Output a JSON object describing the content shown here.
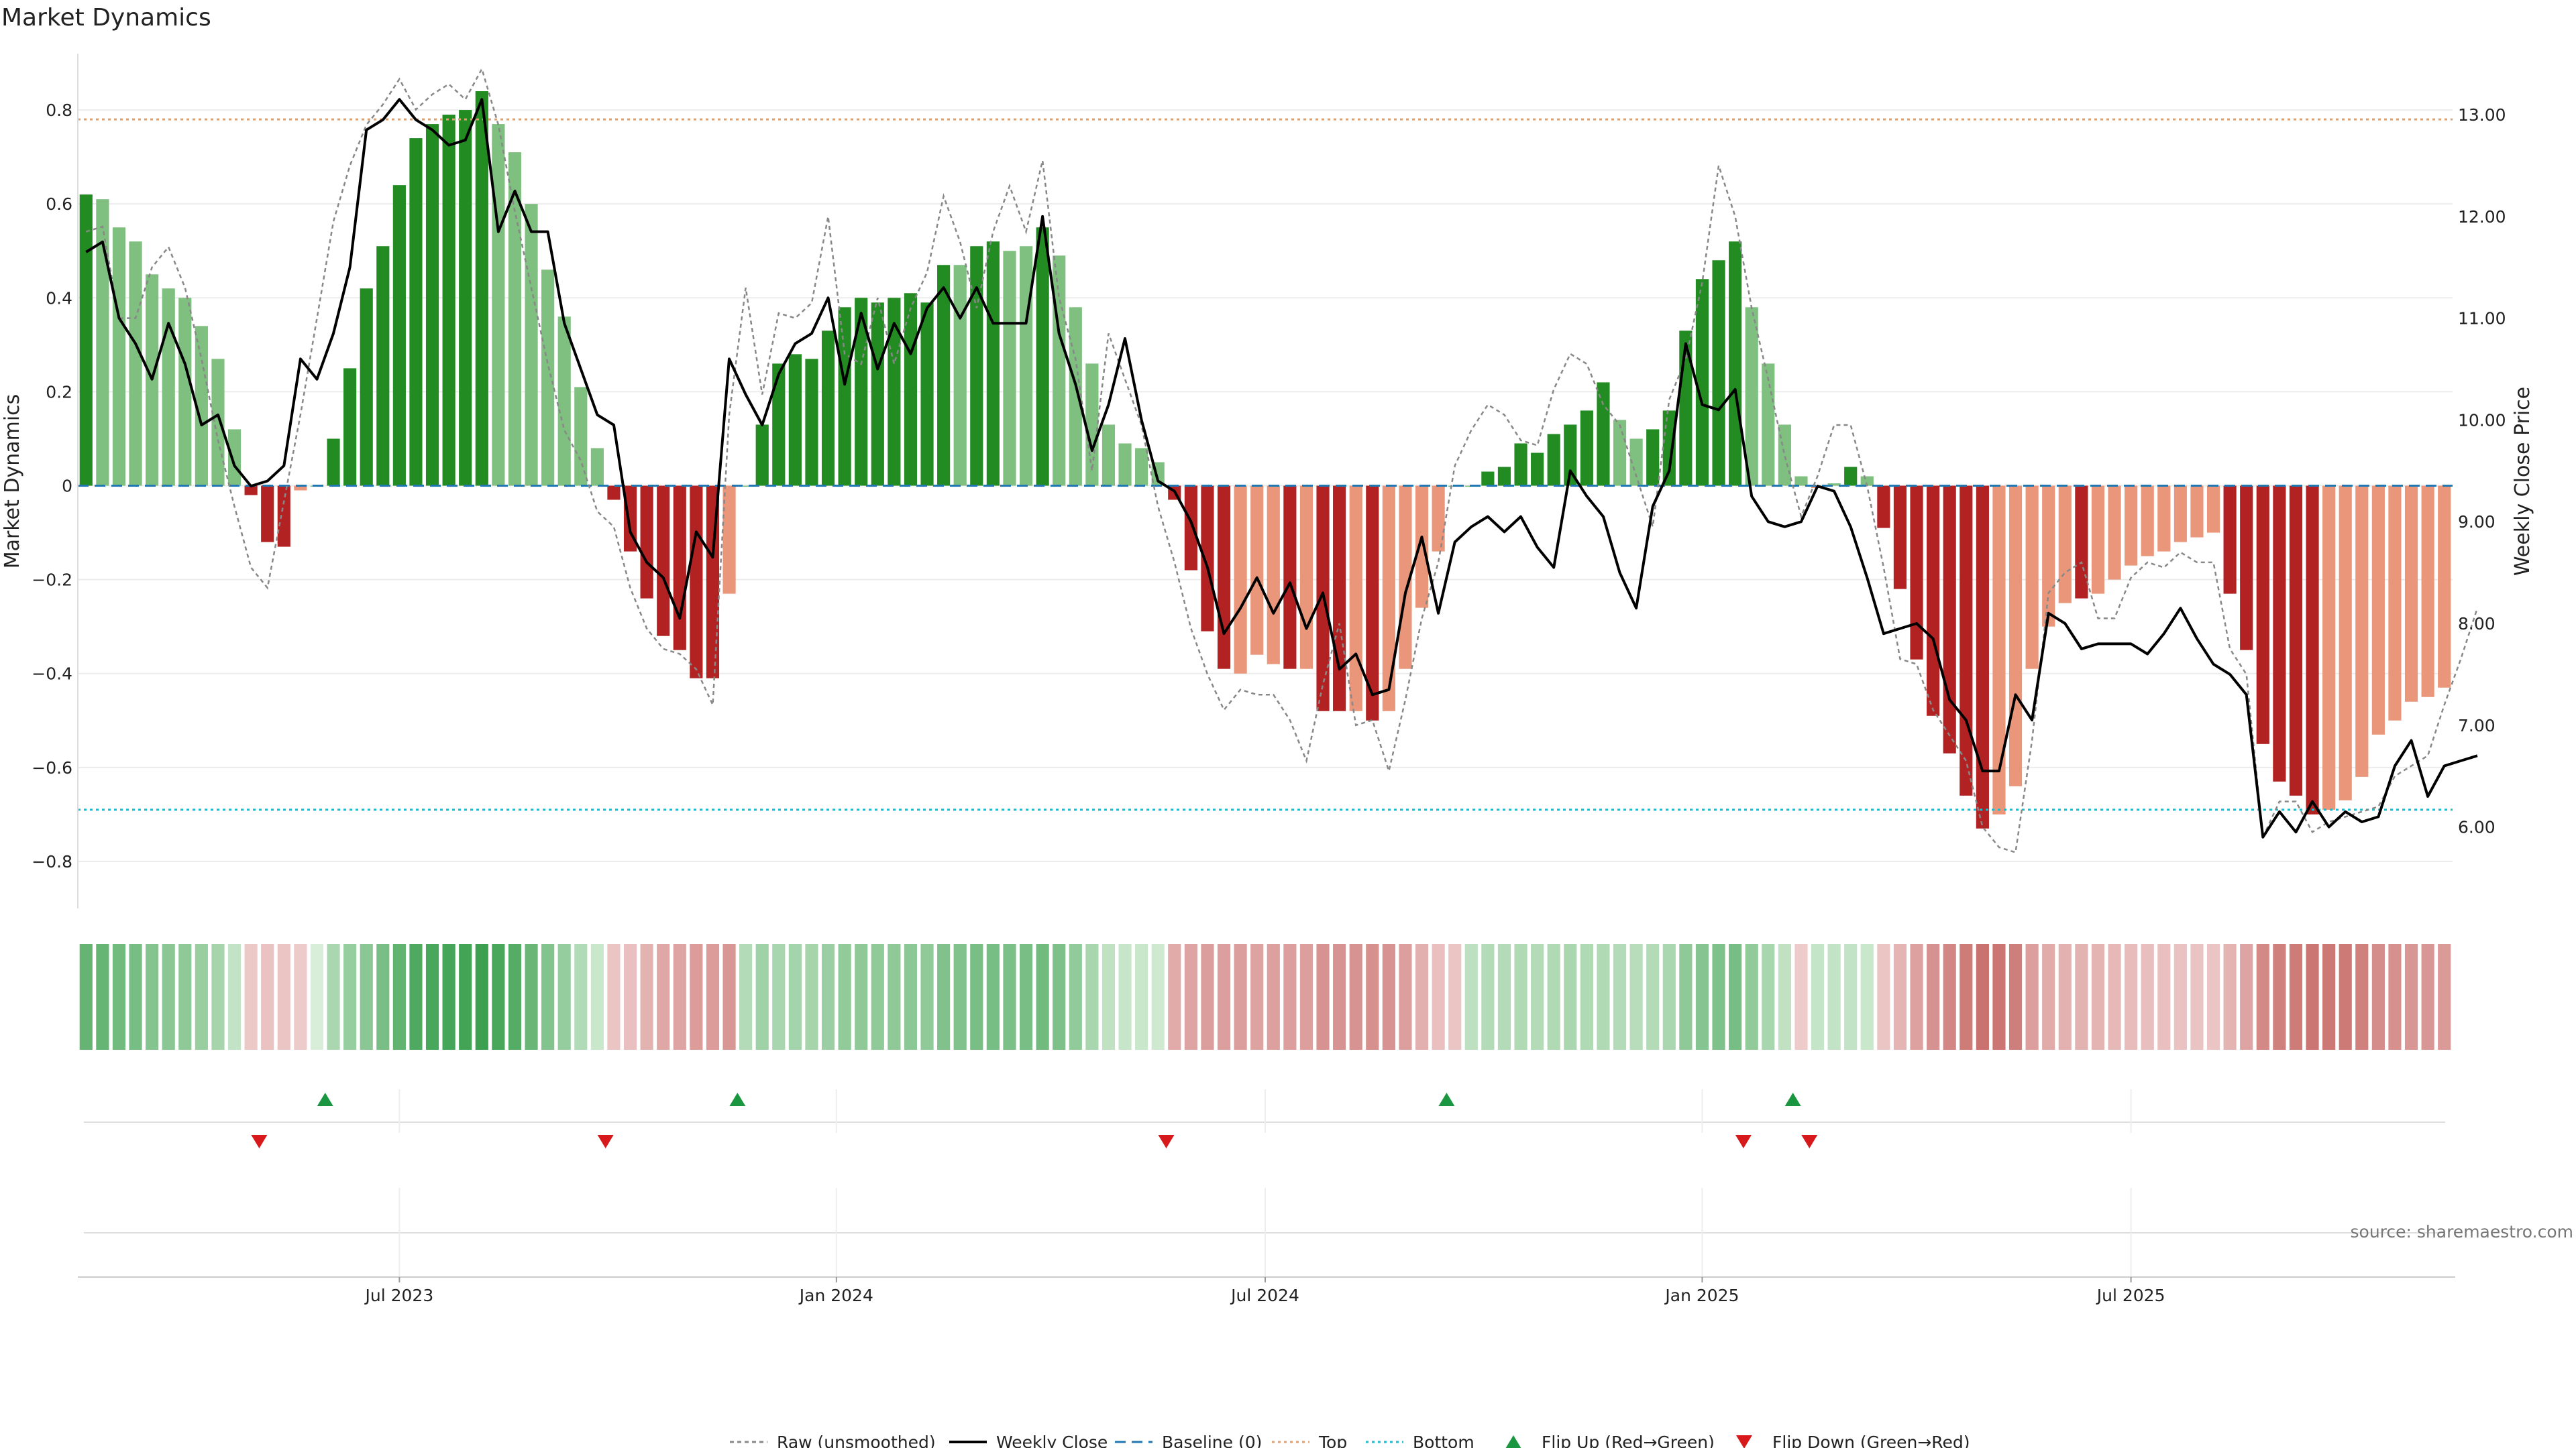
{
  "chart_data": {
    "type": "bar",
    "title": "Market Dynamics",
    "ylabel_left": "Market Dynamics",
    "ylabel_right": "Weekly Close Price",
    "source": "source: sharemaestro.com",
    "ylim_left": [
      -0.9,
      0.92
    ],
    "ylim_right": [
      5.2,
      13.6
    ],
    "left_ticks": [
      {
        "value": 0.8,
        "label": "0.8"
      },
      {
        "value": 0.6,
        "label": "0.6"
      },
      {
        "value": 0.4,
        "label": "0.4"
      },
      {
        "value": 0.2,
        "label": "0.2"
      },
      {
        "value": 0,
        "label": "0"
      },
      {
        "value": -0.2,
        "label": "−0.2"
      },
      {
        "value": -0.4,
        "label": "−0.4"
      },
      {
        "value": -0.6,
        "label": "−0.6"
      },
      {
        "value": -0.8,
        "label": "−0.8"
      }
    ],
    "right_ticks": [
      {
        "value": 13,
        "label": "13.00"
      },
      {
        "value": 12,
        "label": "12.00"
      },
      {
        "value": 11,
        "label": "11.00"
      },
      {
        "value": 10,
        "label": "10.00"
      },
      {
        "value": 9,
        "label": "9.00"
      },
      {
        "value": 8,
        "label": "8.00"
      },
      {
        "value": 7,
        "label": "7.00"
      },
      {
        "value": 6,
        "label": "6.00"
      }
    ],
    "x_ticks": [
      {
        "index": 19,
        "label": "Jul 2023"
      },
      {
        "index": 45.5,
        "label": "Jan 2024"
      },
      {
        "index": 71.5,
        "label": "Jul 2024"
      },
      {
        "index": 98,
        "label": "Jan 2025"
      },
      {
        "index": 124,
        "label": "Jul 2025"
      }
    ],
    "top_level": 0.78,
    "bottom_level": -0.69,
    "baseline": 0,
    "colors": {
      "strong_up": "#228b22",
      "weak_up": "#7fbf7f",
      "strong_down": "#b22222",
      "weak_down": "#e9967a",
      "close": "#000000",
      "raw": "#888888",
      "baseline": "#1f77b4",
      "top": "#e0a070",
      "bottom": "#17becf",
      "flip_up": "#1a9641",
      "flip_down": "#d7191c"
    },
    "bars": [
      {
        "v": 0.62,
        "s": 1
      },
      {
        "v": 0.61,
        "s": 0
      },
      {
        "v": 0.55,
        "s": 0
      },
      {
        "v": 0.52,
        "s": 0
      },
      {
        "v": 0.45,
        "s": 0
      },
      {
        "v": 0.42,
        "s": 0
      },
      {
        "v": 0.4,
        "s": 0
      },
      {
        "v": 0.34,
        "s": 0
      },
      {
        "v": 0.27,
        "s": 0
      },
      {
        "v": 0.12,
        "s": 0
      },
      {
        "v": -0.02,
        "s": 1
      },
      {
        "v": -0.12,
        "s": 1
      },
      {
        "v": -0.13,
        "s": 1
      },
      {
        "v": -0.01,
        "s": 0
      },
      {
        "v": 0.0,
        "s": 0
      },
      {
        "v": 0.1,
        "s": 1
      },
      {
        "v": 0.25,
        "s": 1
      },
      {
        "v": 0.42,
        "s": 1
      },
      {
        "v": 0.51,
        "s": 1
      },
      {
        "v": 0.64,
        "s": 1
      },
      {
        "v": 0.74,
        "s": 1
      },
      {
        "v": 0.77,
        "s": 1
      },
      {
        "v": 0.79,
        "s": 1
      },
      {
        "v": 0.8,
        "s": 1
      },
      {
        "v": 0.84,
        "s": 1
      },
      {
        "v": 0.77,
        "s": 0
      },
      {
        "v": 0.71,
        "s": 0
      },
      {
        "v": 0.6,
        "s": 0
      },
      {
        "v": 0.46,
        "s": 0
      },
      {
        "v": 0.36,
        "s": 0
      },
      {
        "v": 0.21,
        "s": 0
      },
      {
        "v": 0.08,
        "s": 0
      },
      {
        "v": -0.03,
        "s": 1
      },
      {
        "v": -0.14,
        "s": 1
      },
      {
        "v": -0.24,
        "s": 1
      },
      {
        "v": -0.32,
        "s": 1
      },
      {
        "v": -0.35,
        "s": 1
      },
      {
        "v": -0.41,
        "s": 1
      },
      {
        "v": -0.41,
        "s": 1
      },
      {
        "v": -0.23,
        "s": 0
      },
      {
        "v": 0.0,
        "s": 0
      },
      {
        "v": 0.13,
        "s": 1
      },
      {
        "v": 0.26,
        "s": 1
      },
      {
        "v": 0.28,
        "s": 1
      },
      {
        "v": 0.27,
        "s": 1
      },
      {
        "v": 0.33,
        "s": 1
      },
      {
        "v": 0.38,
        "s": 1
      },
      {
        "v": 0.4,
        "s": 1
      },
      {
        "v": 0.39,
        "s": 1
      },
      {
        "v": 0.4,
        "s": 1
      },
      {
        "v": 0.41,
        "s": 1
      },
      {
        "v": 0.39,
        "s": 1
      },
      {
        "v": 0.47,
        "s": 1
      },
      {
        "v": 0.47,
        "s": 0
      },
      {
        "v": 0.51,
        "s": 1
      },
      {
        "v": 0.52,
        "s": 1
      },
      {
        "v": 0.5,
        "s": 0
      },
      {
        "v": 0.51,
        "s": 0
      },
      {
        "v": 0.55,
        "s": 1
      },
      {
        "v": 0.49,
        "s": 0
      },
      {
        "v": 0.38,
        "s": 0
      },
      {
        "v": 0.26,
        "s": 0
      },
      {
        "v": 0.13,
        "s": 0
      },
      {
        "v": 0.09,
        "s": 0
      },
      {
        "v": 0.08,
        "s": 0
      },
      {
        "v": 0.05,
        "s": 0
      },
      {
        "v": -0.03,
        "s": 1
      },
      {
        "v": -0.18,
        "s": 1
      },
      {
        "v": -0.31,
        "s": 1
      },
      {
        "v": -0.39,
        "s": 1
      },
      {
        "v": -0.4,
        "s": 0
      },
      {
        "v": -0.36,
        "s": 0
      },
      {
        "v": -0.38,
        "s": 0
      },
      {
        "v": -0.39,
        "s": 1
      },
      {
        "v": -0.39,
        "s": 0
      },
      {
        "v": -0.48,
        "s": 1
      },
      {
        "v": -0.48,
        "s": 1
      },
      {
        "v": -0.48,
        "s": 0
      },
      {
        "v": -0.5,
        "s": 1
      },
      {
        "v": -0.48,
        "s": 0
      },
      {
        "v": -0.39,
        "s": 0
      },
      {
        "v": -0.26,
        "s": 0
      },
      {
        "v": -0.14,
        "s": 0
      },
      {
        "v": 0.0,
        "s": 0
      },
      {
        "v": 0.0,
        "s": 0
      },
      {
        "v": 0.03,
        "s": 1
      },
      {
        "v": 0.04,
        "s": 1
      },
      {
        "v": 0.09,
        "s": 1
      },
      {
        "v": 0.07,
        "s": 1
      },
      {
        "v": 0.11,
        "s": 1
      },
      {
        "v": 0.13,
        "s": 1
      },
      {
        "v": 0.16,
        "s": 1
      },
      {
        "v": 0.22,
        "s": 1
      },
      {
        "v": 0.14,
        "s": 0
      },
      {
        "v": 0.1,
        "s": 0
      },
      {
        "v": 0.12,
        "s": 1
      },
      {
        "v": 0.16,
        "s": 1
      },
      {
        "v": 0.33,
        "s": 1
      },
      {
        "v": 0.44,
        "s": 1
      },
      {
        "v": 0.48,
        "s": 1
      },
      {
        "v": 0.52,
        "s": 1
      },
      {
        "v": 0.38,
        "s": 0
      },
      {
        "v": 0.26,
        "s": 0
      },
      {
        "v": 0.13,
        "s": 0
      },
      {
        "v": 0.02,
        "s": 0
      },
      {
        "v": -0.005,
        "s": 0
      },
      {
        "v": 0.005,
        "s": 0
      },
      {
        "v": 0.04,
        "s": 1
      },
      {
        "v": 0.02,
        "s": 0
      },
      {
        "v": -0.09,
        "s": 1
      },
      {
        "v": -0.22,
        "s": 1
      },
      {
        "v": -0.37,
        "s": 1
      },
      {
        "v": -0.49,
        "s": 1
      },
      {
        "v": -0.57,
        "s": 1
      },
      {
        "v": -0.66,
        "s": 1
      },
      {
        "v": -0.73,
        "s": 1
      },
      {
        "v": -0.7,
        "s": 0
      },
      {
        "v": -0.64,
        "s": 0
      },
      {
        "v": -0.39,
        "s": 0
      },
      {
        "v": -0.3,
        "s": 0
      },
      {
        "v": -0.25,
        "s": 0
      },
      {
        "v": -0.24,
        "s": 1
      },
      {
        "v": -0.23,
        "s": 0
      },
      {
        "v": -0.2,
        "s": 0
      },
      {
        "v": -0.17,
        "s": 0
      },
      {
        "v": -0.15,
        "s": 0
      },
      {
        "v": -0.14,
        "s": 0
      },
      {
        "v": -0.12,
        "s": 0
      },
      {
        "v": -0.11,
        "s": 0
      },
      {
        "v": -0.1,
        "s": 0
      },
      {
        "v": -0.23,
        "s": 1
      },
      {
        "v": -0.35,
        "s": 1
      },
      {
        "v": -0.55,
        "s": 1
      },
      {
        "v": -0.63,
        "s": 1
      },
      {
        "v": -0.66,
        "s": 1
      },
      {
        "v": -0.7,
        "s": 1
      },
      {
        "v": -0.69,
        "s": 0
      },
      {
        "v": -0.67,
        "s": 0
      },
      {
        "v": -0.62,
        "s": 0
      },
      {
        "v": -0.53,
        "s": 0
      },
      {
        "v": -0.5,
        "s": 0
      },
      {
        "v": -0.46,
        "s": 0
      },
      {
        "v": -0.45,
        "s": 0
      },
      {
        "v": -0.43,
        "s": 0
      }
    ],
    "close": [
      11.65,
      11.75,
      11.0,
      10.75,
      10.4,
      10.95,
      10.55,
      9.95,
      10.05,
      9.55,
      9.35,
      9.4,
      9.55,
      10.6,
      10.4,
      10.85,
      11.5,
      12.85,
      12.95,
      13.15,
      12.95,
      12.85,
      12.7,
      12.75,
      13.15,
      11.85,
      12.25,
      11.85,
      11.85,
      10.95,
      10.5,
      10.05,
      9.95,
      8.9,
      8.6,
      8.45,
      8.05,
      8.9,
      8.65,
      10.6,
      10.25,
      9.95,
      10.45,
      10.75,
      10.85,
      11.2,
      10.35,
      11.05,
      10.5,
      10.95,
      10.65,
      11.1,
      11.3,
      11.0,
      11.3,
      10.95,
      10.95,
      10.95,
      12.0,
      10.85,
      10.35,
      9.7,
      10.15,
      10.8,
      10.0,
      9.4,
      9.3,
      9.0,
      8.55,
      7.9,
      8.15,
      8.45,
      8.1,
      8.4,
      7.95,
      8.3,
      7.55,
      7.7,
      7.3,
      7.35,
      8.3,
      8.85,
      8.1,
      8.8,
      8.95,
      9.05,
      8.9,
      9.05,
      8.75,
      8.55,
      9.5,
      9.25,
      9.05,
      8.5,
      8.15,
      9.15,
      9.5,
      10.75,
      10.15,
      10.1,
      10.3,
      9.25,
      9.0,
      8.95,
      9.0,
      9.35,
      9.3,
      8.95,
      8.45,
      7.9,
      7.95,
      8.0,
      7.85,
      7.25,
      7.05,
      6.55,
      6.55,
      7.3,
      7.05,
      8.1,
      8.0,
      7.75,
      7.8,
      7.8,
      7.8,
      7.7,
      7.9,
      8.15,
      7.85,
      7.6,
      7.5,
      7.3,
      5.9,
      6.15,
      5.95,
      6.25,
      6.0,
      6.15,
      6.05,
      6.1,
      6.6,
      6.85,
      6.3,
      6.6,
      6.65,
      6.7
    ],
    "raw": [
      11.85,
      11.9,
      11.0,
      11.0,
      11.5,
      11.7,
      11.3,
      10.6,
      9.8,
      9.15,
      8.55,
      8.35,
      9.2,
      10.05,
      11.0,
      11.95,
      12.5,
      12.9,
      13.1,
      13.35,
      13.05,
      13.2,
      13.3,
      13.15,
      13.45,
      12.9,
      12.05,
      11.3,
      10.55,
      9.9,
      9.6,
      9.1,
      8.95,
      8.35,
      7.95,
      7.75,
      7.7,
      7.55,
      7.2,
      10.05,
      11.3,
      10.25,
      11.05,
      11.0,
      11.15,
      12.0,
      10.65,
      10.55,
      11.2,
      10.55,
      11.1,
      11.45,
      12.2,
      11.75,
      11.1,
      11.85,
      12.3,
      11.85,
      12.55,
      11.2,
      10.6,
      9.5,
      10.85,
      10.4,
      9.95,
      9.15,
      8.6,
      7.95,
      7.5,
      7.15,
      7.35,
      7.3,
      7.3,
      7.05,
      6.65,
      7.4,
      8.0,
      7.0,
      7.05,
      6.55,
      7.25,
      8.05,
      8.6,
      9.55,
      9.9,
      10.15,
      10.05,
      9.8,
      9.75,
      10.3,
      10.65,
      10.55,
      10.15,
      9.95,
      9.45,
      8.95,
      10.2,
      10.6,
      11.35,
      12.5,
      12.0,
      11.1,
      10.4,
      9.65,
      9.05,
      9.45,
      9.95,
      9.95,
      9.35,
      8.55,
      7.65,
      7.6,
      7.15,
      6.9,
      6.65,
      6.0,
      5.8,
      5.75,
      6.85,
      8.3,
      8.5,
      8.6,
      8.05,
      8.05,
      8.45,
      8.6,
      8.55,
      8.7,
      8.6,
      8.6,
      7.75,
      7.5,
      5.9,
      6.25,
      6.25,
      5.95,
      6.05,
      6.1,
      6.15,
      6.2,
      6.5,
      6.6,
      6.7,
      7.2,
      7.65,
      8.15
    ],
    "heat_values": [
      0.62,
      0.61,
      0.55,
      0.52,
      0.45,
      0.42,
      0.4,
      0.34,
      0.27,
      0.12,
      -0.08,
      -0.12,
      -0.1,
      -0.05,
      0.0,
      0.25,
      0.35,
      0.42,
      0.51,
      0.64,
      0.74,
      0.77,
      0.79,
      0.8,
      0.84,
      0.77,
      0.71,
      0.6,
      0.46,
      0.36,
      0.21,
      0.08,
      -0.1,
      -0.14,
      -0.24,
      -0.32,
      -0.35,
      -0.41,
      -0.41,
      -0.45,
      0.2,
      0.3,
      0.26,
      0.28,
      0.27,
      0.33,
      0.38,
      0.4,
      0.39,
      0.4,
      0.41,
      0.39,
      0.47,
      0.47,
      0.51,
      0.52,
      0.5,
      0.51,
      0.55,
      0.49,
      0.38,
      0.26,
      0.13,
      0.09,
      0.08,
      0.05,
      -0.3,
      -0.35,
      -0.4,
      -0.39,
      -0.4,
      -0.36,
      -0.38,
      -0.39,
      -0.39,
      -0.48,
      -0.48,
      -0.48,
      -0.5,
      -0.48,
      -0.39,
      -0.26,
      -0.14,
      -0.1,
      0.15,
      0.2,
      0.2,
      0.22,
      0.2,
      0.22,
      0.25,
      0.22,
      0.22,
      0.2,
      0.18,
      0.2,
      0.25,
      0.4,
      0.44,
      0.48,
      0.52,
      0.38,
      0.26,
      0.13,
      -0.05,
      0.1,
      0.12,
      0.12,
      0.08,
      -0.1,
      -0.22,
      -0.37,
      -0.49,
      -0.57,
      -0.66,
      -0.73,
      -0.7,
      -0.64,
      -0.39,
      -0.3,
      -0.25,
      -0.24,
      -0.23,
      -0.2,
      -0.17,
      -0.15,
      -0.14,
      -0.12,
      -0.11,
      -0.1,
      -0.23,
      -0.35,
      -0.55,
      -0.63,
      -0.66,
      -0.7,
      -0.69,
      -0.67,
      -0.62,
      -0.53,
      -0.5,
      -0.46,
      -0.45,
      -0.43
    ],
    "flip_up": [
      14.5,
      39.5,
      82.5,
      103.5
    ],
    "flip_down": [
      10.5,
      31.5,
      65.5,
      100.5,
      104.5
    ],
    "legend": [
      {
        "label": "Raw (unsmoothed)",
        "kind": "raw"
      },
      {
        "label": "Weekly Close",
        "kind": "close"
      },
      {
        "label": "Baseline (0)",
        "kind": "baseline"
      },
      {
        "label": "Top",
        "kind": "top"
      },
      {
        "label": "Bottom",
        "kind": "bottom"
      },
      {
        "label": "Flip Up (Red→Green)",
        "kind": "flip_up"
      },
      {
        "label": "Flip Down (Green→Red)",
        "kind": "flip_down"
      }
    ]
  }
}
